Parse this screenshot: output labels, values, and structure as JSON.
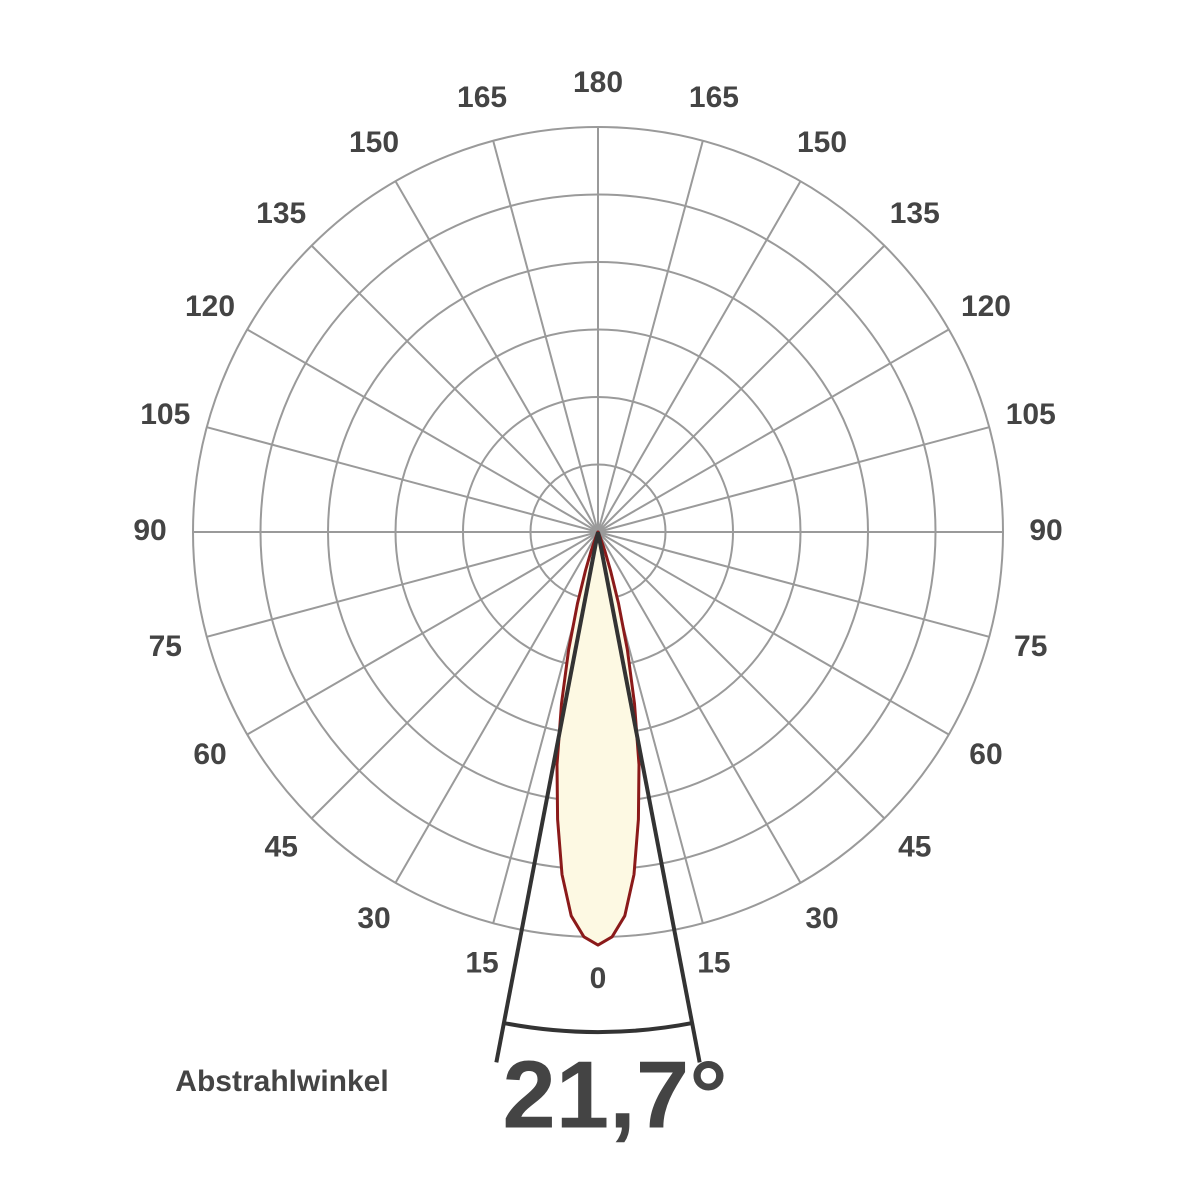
{
  "chart_data": {
    "type": "polar",
    "angle_ticks": [
      0,
      15,
      30,
      45,
      60,
      75,
      90,
      105,
      120,
      135,
      150,
      165,
      180
    ],
    "rlim": [
      0,
      6
    ],
    "rticks": [
      1,
      2,
      3,
      4,
      5,
      6
    ],
    "grid": true,
    "grid_color": "#9a9a9a",
    "series": [
      {
        "color": "#8b1a1a",
        "fill": "#fdf9e3",
        "theta": [
          -30,
          -25,
          -20,
          -18,
          -16,
          -14,
          -12,
          -10,
          -8,
          -6,
          -4,
          -2,
          0,
          2,
          4,
          6,
          8,
          10,
          12,
          14,
          16,
          18,
          20,
          25,
          30
        ],
        "r": [
          0,
          0.05,
          0.3,
          0.6,
          1.1,
          1.8,
          2.6,
          3.5,
          4.3,
          5.1,
          5.7,
          6.0,
          6.12,
          6.0,
          5.7,
          5.1,
          4.3,
          3.5,
          2.6,
          1.8,
          1.1,
          0.6,
          0.3,
          0.05,
          0
        ]
      }
    ],
    "beam_angle": {
      "value": 21.7,
      "label": "21,7°"
    },
    "beam_caption": "Abstrahlwinkel"
  }
}
